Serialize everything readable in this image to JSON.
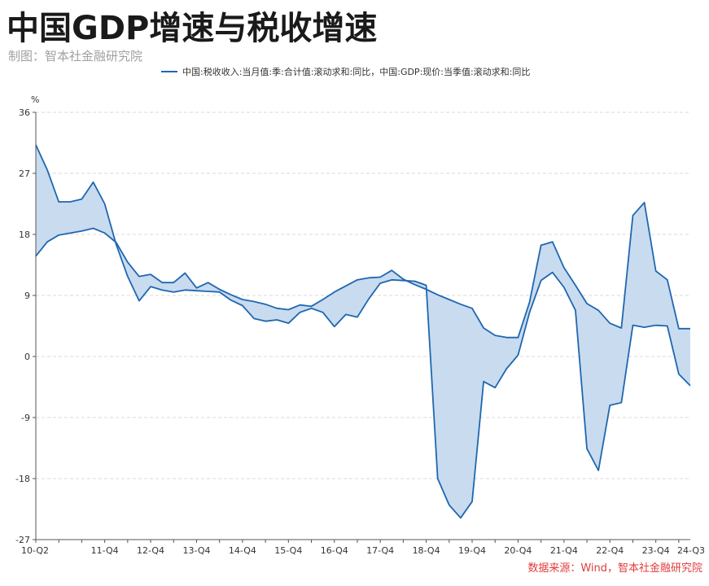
{
  "title": "中国GDP增速与税收增速",
  "subtitle": "制图：智本社金融研究院",
  "legend_label": "中国:税收收入:当月值:季:合计值:滚动求和:同比，中国:GDP:现价:当季值:滚动求和:同比",
  "source": "数据来源：Wind，智本社金融研究院",
  "colors": {
    "line": "#1f67b0",
    "fill": "#c6d9ee",
    "grid": "#d9d9d9"
  },
  "chart_data": {
    "type": "area",
    "ylabel": "%",
    "ylim": [
      -27,
      36
    ],
    "yticks": [
      36,
      27,
      18,
      9,
      0,
      -9,
      -18,
      -27
    ],
    "xtick_labels": [
      "10-Q2",
      "11-Q4",
      "12-Q4",
      "13-Q4",
      "14-Q4",
      "15-Q4",
      "16-Q4",
      "17-Q4",
      "18-Q4",
      "19-Q4",
      "20-Q4",
      "21-Q4",
      "22-Q4",
      "23-Q4",
      "24-Q3"
    ],
    "xtick_index": [
      0,
      6,
      10,
      14,
      18,
      22,
      26,
      30,
      34,
      38,
      42,
      46,
      50,
      54,
      57
    ],
    "grid": true,
    "series": [
      {
        "name": "中国:税收收入:当月值:季:合计值:滚动求和:同比",
        "values": [
          31.2,
          27.5,
          22.8,
          22.8,
          23.2,
          25.7,
          22.5,
          16.5,
          11.8,
          8.2,
          10.3,
          9.8,
          9.5,
          9.8,
          9.7,
          9.6,
          9.5,
          8.3,
          7.5,
          5.6,
          5.2,
          5.4,
          4.9,
          6.5,
          7.1,
          6.5,
          4.4,
          6.2,
          5.8,
          8.5,
          10.8,
          11.3,
          11.2,
          11.1,
          10.5,
          -18.0,
          -21.9,
          -23.8,
          -21.4,
          -3.7,
          -4.6,
          -1.8,
          0.2,
          6.5,
          11.2,
          12.4,
          10.2,
          6.8,
          -13.6,
          -16.8,
          -7.2,
          -6.8,
          4.6,
          4.3,
          4.6,
          4.5,
          -2.6,
          -4.3
        ]
      },
      {
        "name": "中国:GDP:现价:当季值:滚动求和:同比",
        "values": [
          14.8,
          16.9,
          17.9,
          18.2,
          18.5,
          18.9,
          18.2,
          16.8,
          13.9,
          11.8,
          12.1,
          10.9,
          10.9,
          12.3,
          10.1,
          10.9,
          9.9,
          9.1,
          8.4,
          8.1,
          7.7,
          7.1,
          6.9,
          7.6,
          7.4,
          8.4,
          9.5,
          10.4,
          11.3,
          11.6,
          11.7,
          12.7,
          11.4,
          10.6,
          9.9,
          9.1,
          8.4,
          7.7,
          7.1,
          4.2,
          3.1,
          2.8,
          2.8,
          8.0,
          16.4,
          16.9,
          13.1,
          10.5,
          7.8,
          6.8,
          4.9,
          4.2,
          20.8,
          22.7,
          12.6,
          11.3,
          4.1,
          4.1
        ]
      }
    ]
  }
}
